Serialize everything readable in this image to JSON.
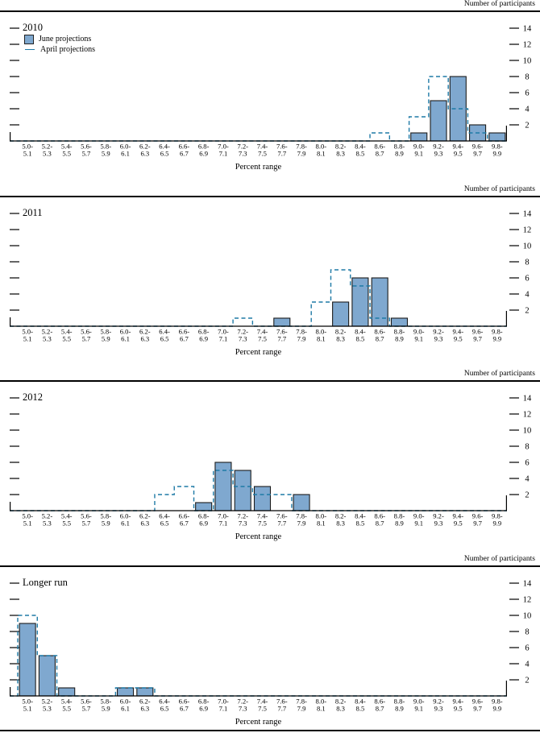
{
  "colors": {
    "bar_fill": "#7fa8cf",
    "bar_stroke": "#1c1c1c",
    "april_dash": "#1f7aa6",
    "axis": "#000000"
  },
  "chart_data": {
    "type": "bar",
    "right_axis_title": "Number of participants",
    "xlabel": "Percent range",
    "legend": [
      "June projections",
      "April projections"
    ],
    "y_ticks": [
      2,
      4,
      6,
      8,
      10,
      12,
      14
    ],
    "ylim": [
      0,
      15
    ],
    "grid": "off",
    "legend_position": "top-left-first-panel",
    "categories": [
      "5.0-5.1",
      "5.2-5.3",
      "5.4-5.5",
      "5.6-5.7",
      "5.8-5.9",
      "6.0-6.1",
      "6.2-6.3",
      "6.4-6.5",
      "6.6-6.7",
      "6.8-6.9",
      "7.0-7.1",
      "7.2-7.3",
      "7.4-7.5",
      "7.6-7.7",
      "7.8-7.9",
      "8.0-8.1",
      "8.2-8.3",
      "8.4-8.5",
      "8.6-8.7",
      "8.8-8.9",
      "9.0-9.1",
      "9.2-9.3",
      "9.4-9.5",
      "9.6-9.7",
      "9.8-9.9"
    ],
    "panels": [
      {
        "title": "2010",
        "series": [
          {
            "name": "June projections",
            "values": [
              0,
              0,
              0,
              0,
              0,
              0,
              0,
              0,
              0,
              0,
              0,
              0,
              0,
              0,
              0,
              0,
              0,
              0,
              0,
              0,
              1,
              5,
              8,
              2,
              1
            ]
          },
          {
            "name": "April projections",
            "values": [
              0,
              0,
              0,
              0,
              0,
              0,
              0,
              0,
              0,
              0,
              0,
              0,
              0,
              0,
              0,
              0,
              0,
              0,
              1,
              0,
              3,
              8,
              4,
              1,
              0
            ]
          }
        ]
      },
      {
        "title": "2011",
        "series": [
          {
            "name": "June projections",
            "values": [
              0,
              0,
              0,
              0,
              0,
              0,
              0,
              0,
              0,
              0,
              0,
              0,
              0,
              1,
              0,
              0,
              3,
              6,
              6,
              1,
              0,
              0,
              0,
              0,
              0
            ]
          },
          {
            "name": "April projections",
            "values": [
              0,
              0,
              0,
              0,
              0,
              0,
              0,
              0,
              0,
              0,
              0,
              1,
              0,
              0,
              0,
              3,
              7,
              5,
              1,
              0,
              0,
              0,
              0,
              0,
              0
            ]
          }
        ]
      },
      {
        "title": "2012",
        "series": [
          {
            "name": "June projections",
            "values": [
              0,
              0,
              0,
              0,
              0,
              0,
              0,
              0,
              0,
              1,
              6,
              5,
              3,
              0,
              2,
              0,
              0,
              0,
              0,
              0,
              0,
              0,
              0,
              0,
              0
            ]
          },
          {
            "name": "April projections",
            "values": [
              0,
              0,
              0,
              0,
              0,
              0,
              0,
              2,
              3,
              0,
              5,
              3,
              2,
              2,
              0,
              0,
              0,
              0,
              0,
              0,
              0,
              0,
              0,
              0,
              0
            ]
          }
        ]
      },
      {
        "title": "Longer run",
        "series": [
          {
            "name": "June projections",
            "values": [
              9,
              5,
              1,
              0,
              0,
              1,
              1,
              0,
              0,
              0,
              0,
              0,
              0,
              0,
              0,
              0,
              0,
              0,
              0,
              0,
              0,
              0,
              0,
              0,
              0
            ]
          },
          {
            "name": "April projections",
            "values": [
              10,
              5,
              0,
              0,
              0,
              1,
              1,
              0,
              0,
              0,
              0,
              0,
              0,
              0,
              0,
              0,
              0,
              0,
              0,
              0,
              0,
              0,
              0,
              0,
              0
            ]
          }
        ]
      }
    ]
  }
}
